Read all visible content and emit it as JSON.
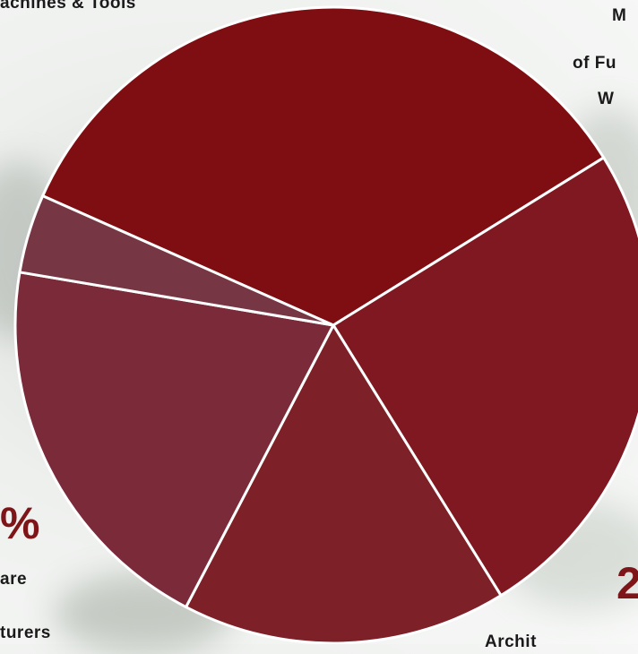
{
  "chart_data": {
    "type": "pie",
    "title": "",
    "slices": [
      {
        "label": "",
        "value": 34.5,
        "color": "#7f0e12"
      },
      {
        "label": "",
        "value": 25.0,
        "color": "#7f1820"
      },
      {
        "label": "",
        "value": 16.5,
        "color": "#7e2028"
      },
      {
        "label": "",
        "value": 20.0,
        "color": "#7a2a38"
      },
      {
        "label": "",
        "value": 4.0,
        "color": "#773643"
      }
    ]
  },
  "labels": {
    "top_left": "achines & Tools",
    "top_right_1": "M",
    "top_right_2": "of Fu",
    "top_right_3": "W",
    "left_big": "%",
    "left_1": "are",
    "left_2": "turers",
    "right_big": "2",
    "bottom_right": "Archit"
  }
}
